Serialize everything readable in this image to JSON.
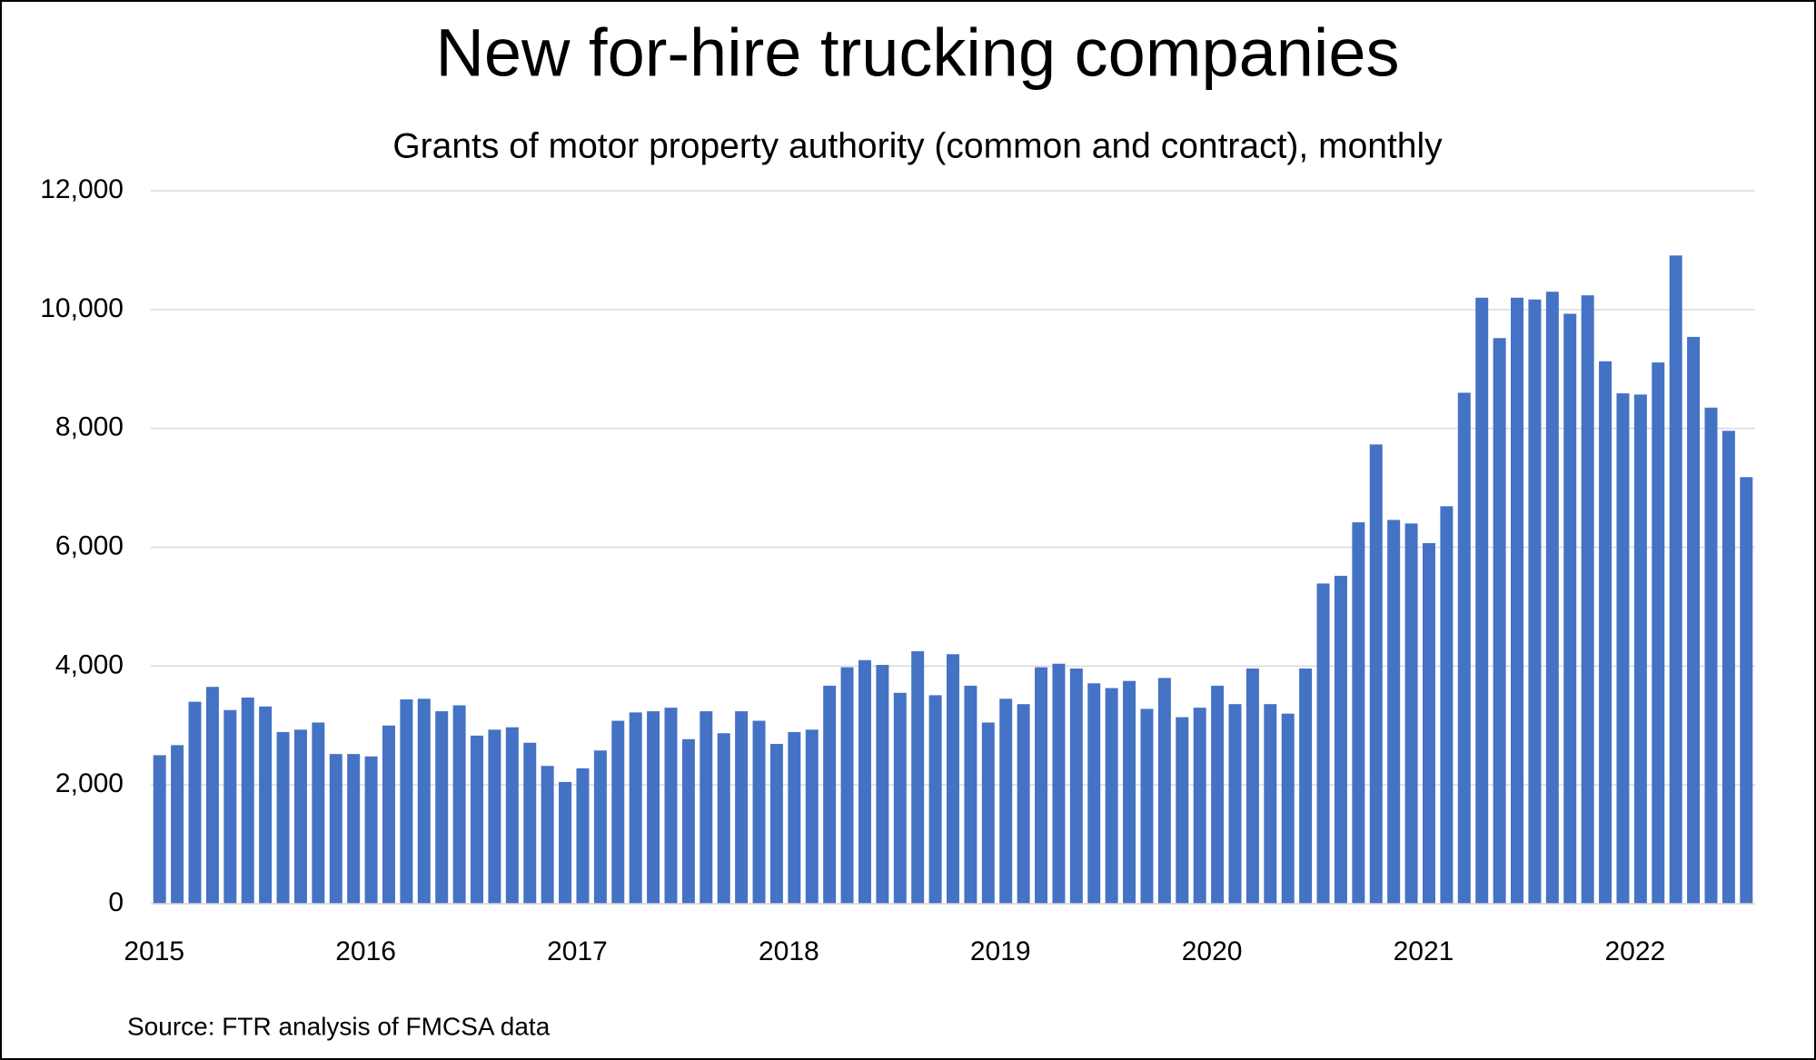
{
  "chart_data": {
    "type": "bar",
    "title": "New for-hire trucking companies",
    "subtitle": "Grants of motor property authority (common and contract), monthly",
    "source": "Source: FTR analysis of FMCSA data",
    "categories": [
      "2015",
      null,
      null,
      null,
      null,
      null,
      null,
      null,
      null,
      null,
      null,
      null,
      "2016",
      null,
      null,
      null,
      null,
      null,
      null,
      null,
      null,
      null,
      null,
      null,
      "2017",
      null,
      null,
      null,
      null,
      null,
      null,
      null,
      null,
      null,
      null,
      null,
      "2018",
      null,
      null,
      null,
      null,
      null,
      null,
      null,
      null,
      null,
      null,
      null,
      "2019",
      null,
      null,
      null,
      null,
      null,
      null,
      null,
      null,
      null,
      null,
      null,
      "2020",
      null,
      null,
      null,
      null,
      null,
      null,
      null,
      null,
      null,
      null,
      null,
      "2021",
      null,
      null,
      null,
      null,
      null,
      null,
      null,
      null,
      null,
      null,
      null,
      "2022",
      null,
      null,
      null,
      null,
      null,
      null
    ],
    "values": [
      2500,
      2670,
      3400,
      3650,
      3260,
      3470,
      3320,
      2890,
      2930,
      3050,
      2520,
      2520,
      2480,
      3000,
      3440,
      3450,
      3240,
      3340,
      2830,
      2930,
      2970,
      2710,
      2320,
      2050,
      2280,
      2580,
      3080,
      3220,
      3240,
      3300,
      2770,
      3240,
      2870,
      3240,
      3080,
      2690,
      2890,
      2930,
      3670,
      3980,
      4100,
      4020,
      3550,
      4250,
      3510,
      4200,
      3670,
      3050,
      3450,
      3360,
      3980,
      4040,
      3960,
      3710,
      3630,
      3750,
      3280,
      3800,
      3140,
      3300,
      3670,
      3360,
      3960,
      3360,
      3200,
      3960,
      5390,
      5520,
      6420,
      7730,
      6460,
      6400,
      6070,
      6690,
      8600,
      10200,
      9520,
      10200,
      10170,
      10300,
      9930,
      10240,
      9130,
      8590,
      8570,
      9110,
      10910,
      9540,
      8350,
      7960,
      7180
    ],
    "color": "#4472c4",
    "ylim": [
      0,
      12000
    ],
    "yticks": [
      0,
      {
        "value": 2000,
        "label": "2,000"
      },
      {
        "value": 4000,
        "label": "4,000"
      },
      {
        "value": 6000,
        "label": "6,000"
      },
      {
        "value": 8000,
        "label": "8,000"
      },
      {
        "value": 10000,
        "label": "10,000"
      },
      {
        "value": 12000,
        "label": "12,000"
      }
    ],
    "grid": true
  }
}
